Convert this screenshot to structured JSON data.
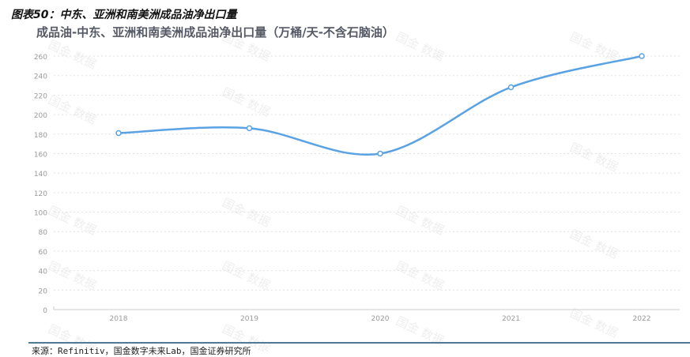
{
  "title": "图表50：中东、亚洲和南美洲成品油净出口量",
  "source": "来源：Refinitiv，国金数字未来Lab，国金证券研究所",
  "watermark": "国金 数据",
  "chart_data": {
    "type": "line",
    "title": "成品油-中东、亚洲和南美洲成品油净出口量（万桶/天-不含石脑油）",
    "categories": [
      "2018",
      "2019",
      "2020",
      "2021",
      "2022"
    ],
    "series": [
      {
        "values": [
          181,
          186,
          160,
          228,
          260
        ],
        "color": "#5aa2e3"
      }
    ],
    "yticks": [
      0,
      20,
      40,
      60,
      80,
      100,
      120,
      140,
      160,
      180,
      200,
      220,
      240,
      260
    ],
    "ylim": [
      0,
      260
    ],
    "grid": "horizontal dotted",
    "smooth": true
  }
}
